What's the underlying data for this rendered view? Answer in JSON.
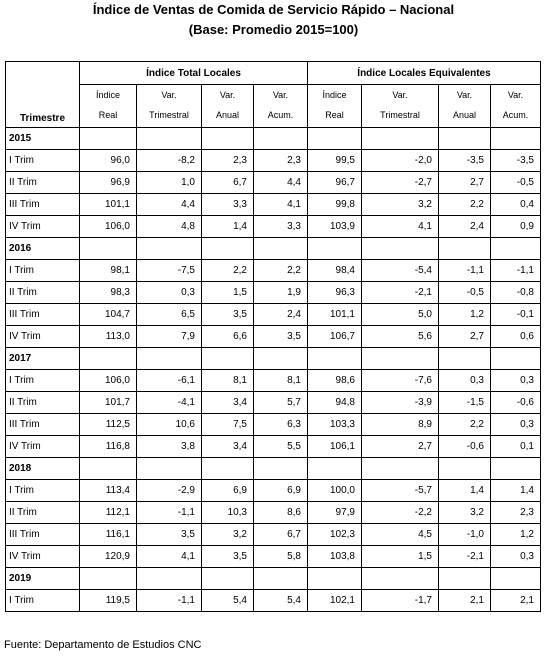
{
  "title": "Índice de Ventas de Comida de Servicio Rápido – Nacional",
  "subtitle": "(Base: Promedio 2015=100)",
  "groups": {
    "total": "Índice Total Locales",
    "equiv": "Índice Locales Equivalentes"
  },
  "columns": {
    "trimestre": "Trimestre",
    "indice_1": "Índice",
    "indice_2": "Real",
    "var_t_1": "Var.",
    "var_t_2": "Trimestral",
    "var_a_1": "Var.",
    "var_a_2": "Anual",
    "var_c_1": "Var.",
    "var_c_2": "Acum."
  },
  "years": [
    {
      "year": "2015",
      "rows": [
        [
          "I Trim",
          "96,0",
          "-8,2",
          "2,3",
          "2,3",
          "99,5",
          "-2,0",
          "-3,5",
          "-3,5"
        ],
        [
          "II Trim",
          "96,9",
          "1,0",
          "6,7",
          "4,4",
          "96,7",
          "-2,7",
          "2,7",
          "-0,5"
        ],
        [
          "III Trim",
          "101,1",
          "4,4",
          "3,3",
          "4,1",
          "99,8",
          "3,2",
          "2,2",
          "0,4"
        ],
        [
          "IV Trim",
          "106,0",
          "4,8",
          "1,4",
          "3,3",
          "103,9",
          "4,1",
          "2,4",
          "0,9"
        ]
      ]
    },
    {
      "year": "2016",
      "rows": [
        [
          "I Trim",
          "98,1",
          "-7,5",
          "2,2",
          "2,2",
          "98,4",
          "-5,4",
          "-1,1",
          "-1,1"
        ],
        [
          "II Trim",
          "98,3",
          "0,3",
          "1,5",
          "1,9",
          "96,3",
          "-2,1",
          "-0,5",
          "-0,8"
        ],
        [
          "III Trim",
          "104,7",
          "6,5",
          "3,5",
          "2,4",
          "101,1",
          "5,0",
          "1,2",
          "-0,1"
        ],
        [
          "IV Trim",
          "113,0",
          "7,9",
          "6,6",
          "3,5",
          "106,7",
          "5,6",
          "2,7",
          "0,6"
        ]
      ]
    },
    {
      "year": "2017",
      "rows": [
        [
          "I Trim",
          "106,0",
          "-6,1",
          "8,1",
          "8,1",
          "98,6",
          "-7,6",
          "0,3",
          "0,3"
        ],
        [
          "II Trim",
          "101,7",
          "-4,1",
          "3,4",
          "5,7",
          "94,8",
          "-3,9",
          "-1,5",
          "-0,6"
        ],
        [
          "III Trim",
          "112,5",
          "10,6",
          "7,5",
          "6,3",
          "103,3",
          "8,9",
          "2,2",
          "0,3"
        ],
        [
          "IV Trim",
          "116,8",
          "3,8",
          "3,4",
          "5,5",
          "106,1",
          "2,7",
          "-0,6",
          "0,1"
        ]
      ]
    },
    {
      "year": "2018",
      "rows": [
        [
          "I Trim",
          "113,4",
          "-2,9",
          "6,9",
          "6,9",
          "100,0",
          "-5,7",
          "1,4",
          "1,4"
        ],
        [
          "II Trim",
          "112,1",
          "-1,1",
          "10,3",
          "8,6",
          "97,9",
          "-2,2",
          "3,2",
          "2,3"
        ],
        [
          "III Trim",
          "116,1",
          "3,5",
          "3,2",
          "6,7",
          "102,3",
          "4,5",
          "-1,0",
          "1,2"
        ],
        [
          "IV Trim",
          "120,9",
          "4,1",
          "3,5",
          "5,8",
          "103,8",
          "1,5",
          "-2,1",
          "0,3"
        ]
      ]
    },
    {
      "year": "2019",
      "rows": [
        [
          "I Trim",
          "119,5",
          "-1,1",
          "5,4",
          "5,4",
          "102,1",
          "-1,7",
          "2,1",
          "2,1"
        ]
      ]
    }
  ],
  "source": "Fuente: Departamento de Estudios CNC"
}
